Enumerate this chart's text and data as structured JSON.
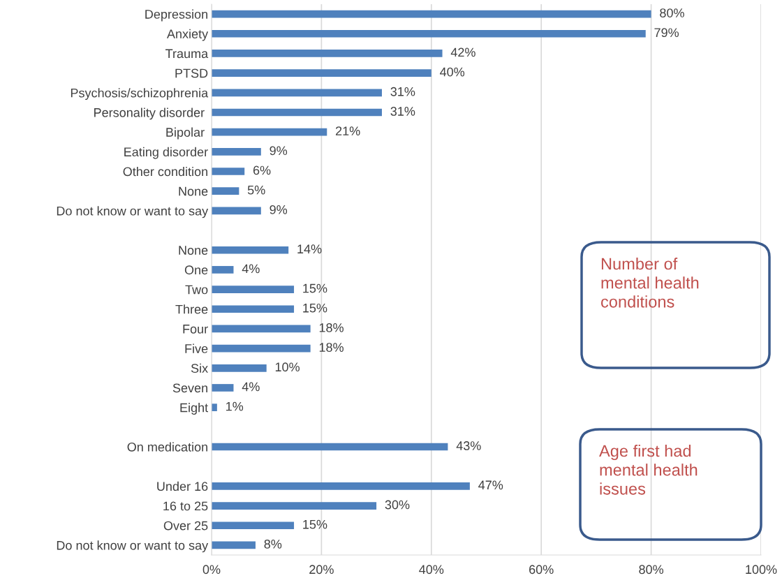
{
  "chart_data": {
    "type": "bar",
    "orientation": "horizontal",
    "categories": [
      "Depression",
      "Anxiety",
      "Trauma",
      "PTSD",
      "Psychosis/schizophrenia",
      "Personality disorder ",
      "Bipolar ",
      "Eating disorder",
      "Other condition",
      "None",
      "Do not know or want to say",
      null,
      "None",
      "One",
      "Two",
      "Three",
      "Four",
      "Five",
      "Six",
      "Seven",
      "Eight",
      null,
      "On medication",
      null,
      "Under 16",
      "16 to 25",
      "Over 25",
      "Do not know or want to say"
    ],
    "values": [
      80,
      79,
      42,
      40,
      31,
      31,
      21,
      9,
      6,
      5,
      9,
      null,
      14,
      4,
      15,
      15,
      18,
      18,
      10,
      4,
      1,
      null,
      43,
      null,
      47,
      30,
      15,
      8
    ],
    "value_labels": [
      "80%",
      "79%",
      "42%",
      "40%",
      "31%",
      "31%",
      "21%",
      "9%",
      "6%",
      "5%",
      "9%",
      null,
      "14%",
      "4%",
      "15%",
      "15%",
      "18%",
      "18%",
      "10%",
      "4%",
      "1%",
      null,
      "43%",
      null,
      "47%",
      "30%",
      "15%",
      "8%"
    ],
    "color": "#4f81bd",
    "xlim": [
      0,
      100
    ],
    "xticks": [
      {
        "value": 0,
        "label": "0%"
      },
      {
        "value": 20,
        "label": "20%"
      },
      {
        "value": 40,
        "label": "40%"
      },
      {
        "value": 60,
        "label": "60%"
      },
      {
        "value": 80,
        "label": "80%"
      },
      {
        "value": 100,
        "label": "100%"
      }
    ],
    "grid": "x",
    "annotations": [
      "Number of\nmental health\nconditions",
      "Age first had\nmental health\nissues"
    ]
  }
}
